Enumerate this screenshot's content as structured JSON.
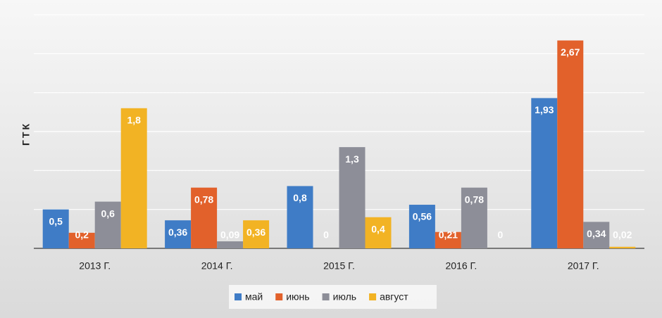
{
  "chart_data": {
    "type": "bar",
    "y_label": "ГТК",
    "categories": [
      "2013 Г.",
      "2014 Г.",
      "2015 Г.",
      "2016 Г.",
      "2017 Г."
    ],
    "series": [
      {
        "name": "май",
        "color": "#3f7cc6",
        "values": [
          0.5,
          0.36,
          0.8,
          0.56,
          1.93
        ],
        "value_labels": [
          "0,5",
          "0,36",
          "0,8",
          "0,56",
          "1,93"
        ]
      },
      {
        "name": "июнь",
        "color": "#e2612b",
        "values": [
          0.2,
          0.78,
          0,
          0.21,
          2.67
        ],
        "value_labels": [
          "0,2",
          "0,78",
          "0",
          "0,21",
          "2,67"
        ]
      },
      {
        "name": "июль",
        "color": "#8d8e98",
        "values": [
          0.6,
          0.09,
          1.3,
          0.78,
          0.34
        ],
        "value_labels": [
          "0,6",
          "0,09",
          "1,3",
          "0,78",
          "0,34"
        ]
      },
      {
        "name": "август",
        "color": "#f2b324",
        "values": [
          1.8,
          0.36,
          0.4,
          0,
          0.02
        ],
        "value_labels": [
          "1,8",
          "0,36",
          "0,4",
          "0",
          "0,02"
        ]
      }
    ],
    "ylim": [
      0,
      3
    ],
    "yticks": [
      0,
      0.5,
      1,
      1.5,
      2,
      2.5,
      3
    ],
    "grid": true
  }
}
